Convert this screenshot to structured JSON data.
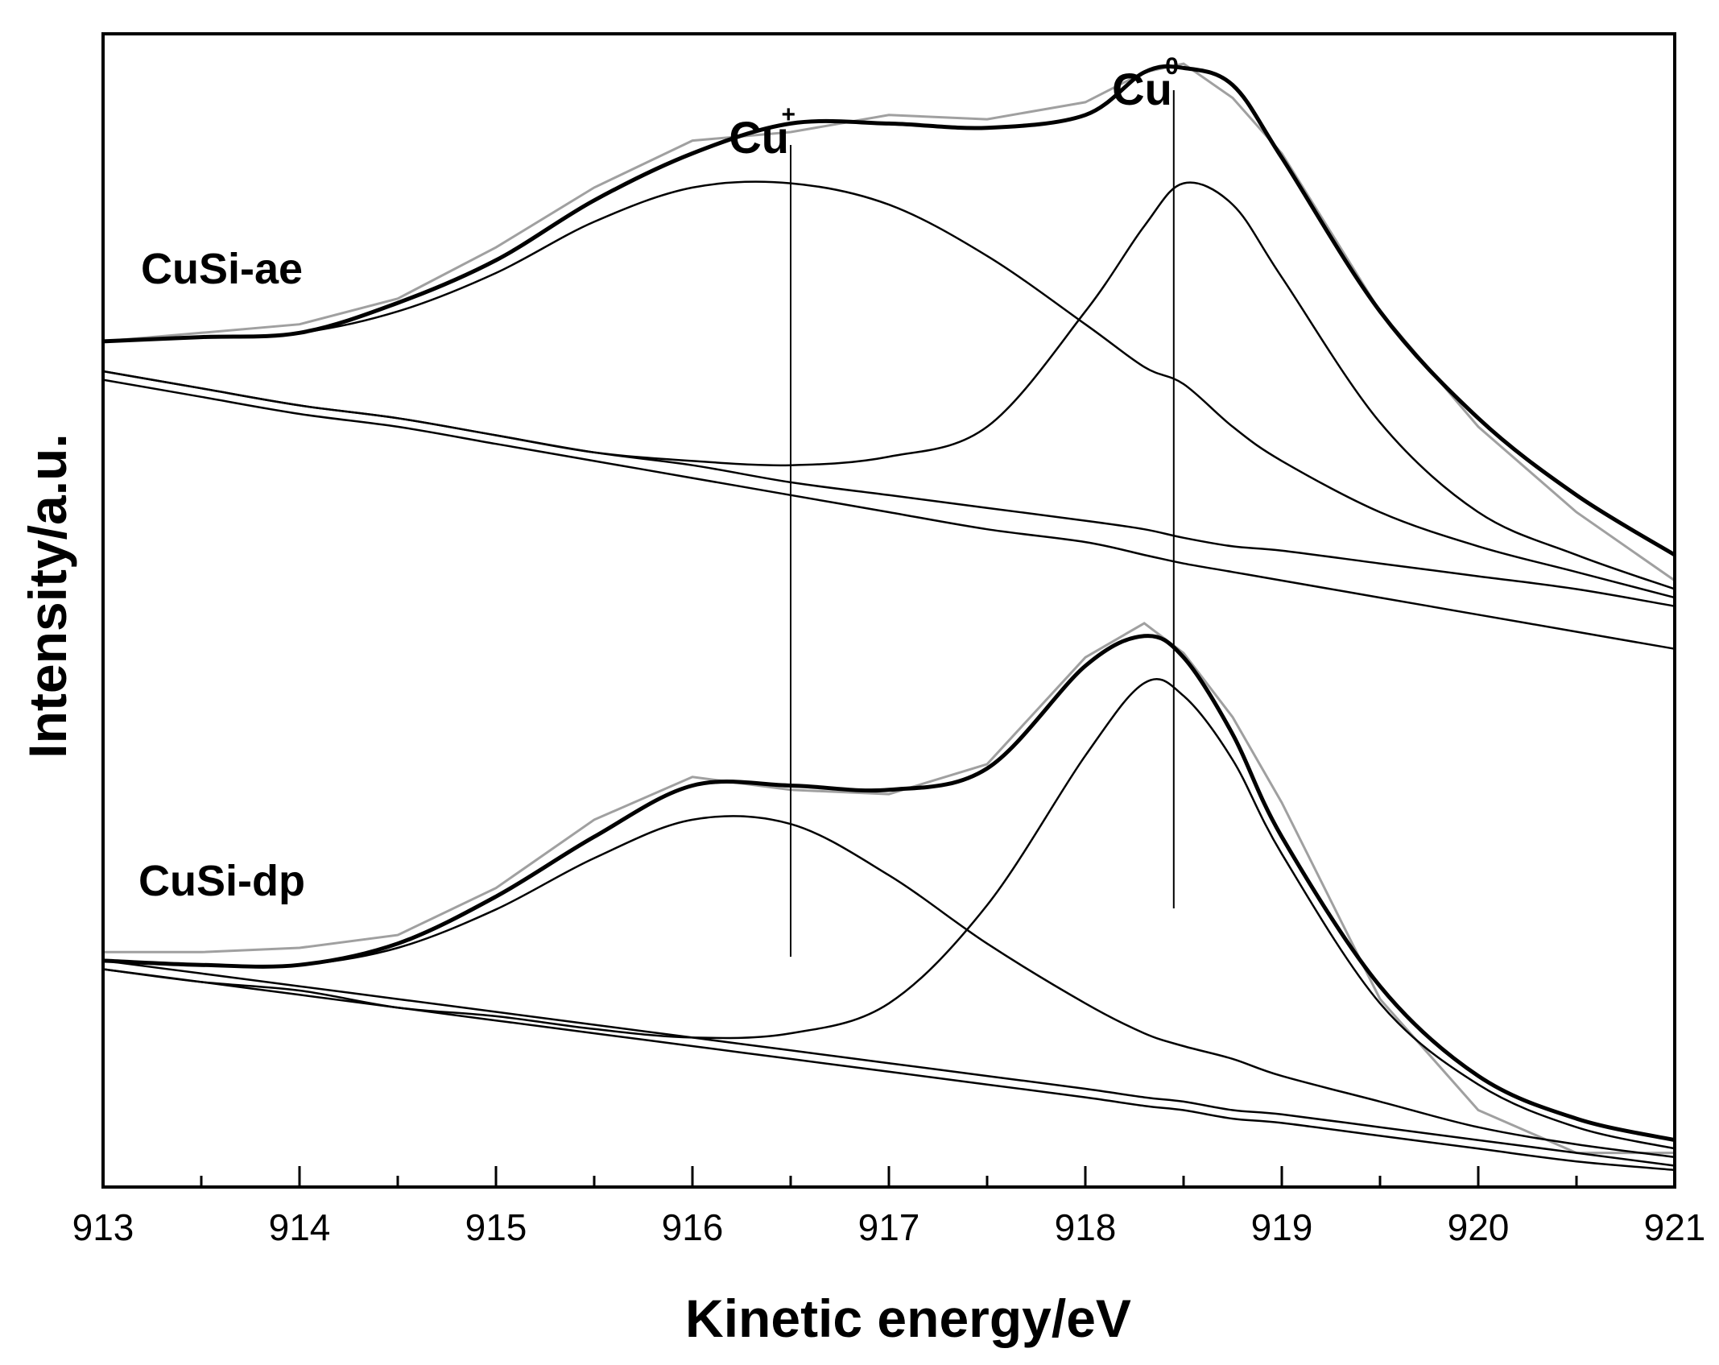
{
  "chart_data": {
    "type": "line",
    "xlabel": "Kinetic energy/eV",
    "ylabel": "Intensity/a.u.",
    "xlim": [
      913,
      921
    ],
    "ylim": [
      0,
      2.7
    ],
    "x_ticks": [
      "913",
      "914",
      "915",
      "916",
      "917",
      "918",
      "919",
      "920",
      "921"
    ],
    "grid": false,
    "legend": "none",
    "colors": {
      "fit": "#000000",
      "raw": "#a0a0a0",
      "axis": "#000000"
    },
    "markers": [
      {
        "label": "Cu",
        "sup": "+",
        "x": 916.5
      },
      {
        "label": "Cu",
        "sup": "0",
        "x": 918.45
      }
    ],
    "panels": [
      {
        "label": "CuSi-ae",
        "x": [
          913.0,
          913.5,
          914.0,
          914.5,
          915.0,
          915.5,
          916.0,
          916.5,
          917.0,
          917.5,
          918.0,
          918.3,
          918.5,
          918.75,
          919.0,
          919.5,
          920.0,
          920.5,
          921.0
        ],
        "series": [
          {
            "name": "",
            "role": "background",
            "values": [
              1.91,
              1.87,
              1.83,
              1.8,
              1.76,
              1.72,
              1.69,
              1.65,
              1.62,
              1.59,
              1.56,
              1.54,
              1.52,
              1.5,
              1.49,
              1.46,
              1.43,
              1.4,
              1.36
            ]
          },
          {
            "name": "",
            "role": "background",
            "values": [
              1.89,
              1.85,
              1.81,
              1.78,
              1.74,
              1.7,
              1.66,
              1.62,
              1.58,
              1.54,
              1.51,
              1.48,
              1.46,
              1.44,
              1.42,
              1.38,
              1.34,
              1.3,
              1.26
            ]
          },
          {
            "name": "",
            "role": "component",
            "values": [
              1.98,
              1.99,
              2.0,
              2.05,
              2.14,
              2.26,
              2.34,
              2.35,
              2.3,
              2.18,
              2.02,
              1.92,
              1.88,
              1.78,
              1.7,
              1.58,
              1.5,
              1.44,
              1.38
            ]
          },
          {
            "name": "",
            "role": "component",
            "values": [
              1.91,
              1.87,
              1.83,
              1.8,
              1.76,
              1.72,
              1.7,
              1.69,
              1.71,
              1.78,
              2.05,
              2.25,
              2.35,
              2.3,
              2.13,
              1.79,
              1.58,
              1.48,
              1.4
            ]
          },
          {
            "name": "",
            "role": "envelope",
            "values": [
              1.98,
              1.99,
              2.0,
              2.07,
              2.17,
              2.31,
              2.42,
              2.49,
              2.49,
              2.48,
              2.51,
              2.61,
              2.62,
              2.58,
              2.41,
              2.05,
              1.8,
              1.62,
              1.48
            ]
          },
          {
            "name": "",
            "role": "raw",
            "values": [
              1.98,
              2.0,
              2.02,
              2.08,
              2.2,
              2.34,
              2.45,
              2.47,
              2.51,
              2.5,
              2.54,
              2.61,
              2.63,
              2.55,
              2.42,
              2.05,
              1.78,
              1.58,
              1.42
            ]
          }
        ]
      },
      {
        "label": "CuSi-dp",
        "x": [
          913.0,
          913.5,
          914.0,
          914.5,
          915.0,
          915.5,
          916.0,
          916.5,
          917.0,
          917.5,
          918.0,
          918.3,
          918.5,
          918.75,
          919.0,
          919.5,
          920.0,
          920.5,
          921.0
        ],
        "series": [
          {
            "name": "",
            "role": "background",
            "values": [
              0.51,
              0.48,
              0.45,
              0.42,
              0.39,
              0.36,
              0.33,
              0.3,
              0.27,
              0.24,
              0.21,
              0.19,
              0.18,
              0.16,
              0.15,
              0.12,
              0.09,
              0.06,
              0.04
            ]
          },
          {
            "name": "",
            "role": "background",
            "values": [
              0.53,
              0.5,
              0.47,
              0.44,
              0.41,
              0.38,
              0.35,
              0.32,
              0.29,
              0.26,
              0.23,
              0.21,
              0.2,
              0.18,
              0.17,
              0.14,
              0.11,
              0.08,
              0.05
            ]
          },
          {
            "name": "",
            "role": "component",
            "values": [
              0.53,
              0.52,
              0.52,
              0.56,
              0.65,
              0.77,
              0.86,
              0.85,
              0.73,
              0.57,
              0.43,
              0.36,
              0.33,
              0.3,
              0.26,
              0.2,
              0.14,
              0.1,
              0.07
            ]
          },
          {
            "name": "",
            "role": "component",
            "values": [
              0.51,
              0.48,
              0.46,
              0.42,
              0.4,
              0.37,
              0.35,
              0.36,
              0.43,
              0.66,
              1.01,
              1.18,
              1.15,
              1.0,
              0.78,
              0.43,
              0.24,
              0.14,
              0.09
            ]
          },
          {
            "name": "",
            "role": "envelope",
            "values": [
              0.53,
              0.52,
              0.52,
              0.57,
              0.68,
              0.82,
              0.94,
              0.94,
              0.93,
              0.98,
              1.22,
              1.29,
              1.24,
              1.06,
              0.82,
              0.47,
              0.26,
              0.16,
              0.11
            ]
          },
          {
            "name": "",
            "role": "raw",
            "values": [
              0.55,
              0.55,
              0.56,
              0.59,
              0.7,
              0.86,
              0.96,
              0.93,
              0.92,
              0.99,
              1.24,
              1.32,
              1.25,
              1.1,
              0.9,
              0.44,
              0.18,
              0.08,
              0.08
            ]
          }
        ]
      }
    ]
  }
}
